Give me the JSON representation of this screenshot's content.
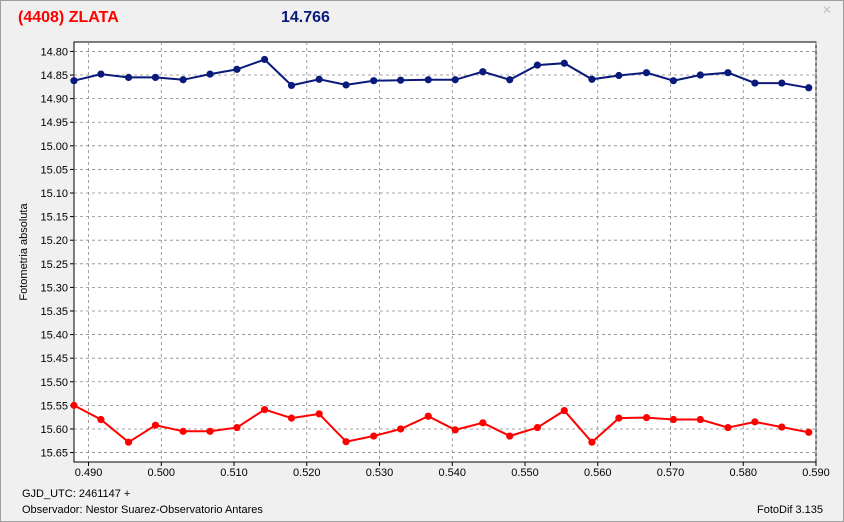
{
  "header": {
    "object_name": "(4408) ZLATA",
    "magnitude": "14.766"
  },
  "footer": {
    "gjd": "GJD_UTC: 2461147 +",
    "observer": "Observador: Nestor Suarez-Observatorio Antares",
    "version": "FotoDif 3.135"
  },
  "chart_data": {
    "type": "line",
    "title": "",
    "xlabel": "",
    "ylabel": "Fotometria absoluta",
    "xlim": [
      0.488,
      0.59
    ],
    "ylim": [
      15.67,
      14.78
    ],
    "y_inverted": true,
    "grid": true,
    "x_ticks": [
      "0.490",
      "0.500",
      "0.510",
      "0.520",
      "0.530",
      "0.540",
      "0.550",
      "0.560",
      "0.570",
      "0.580",
      "0.590"
    ],
    "y_ticks": [
      "14.80",
      "14.85",
      "14.90",
      "14.95",
      "15.00",
      "15.05",
      "15.10",
      "15.15",
      "15.20",
      "15.25",
      "15.30",
      "15.35",
      "15.40",
      "15.45",
      "15.50",
      "15.55",
      "15.60",
      "15.65"
    ],
    "x": [
      0.488,
      0.4917,
      0.4955,
      0.4992,
      0.503,
      0.5067,
      0.5104,
      0.5142,
      0.5179,
      0.5217,
      0.5254,
      0.5292,
      0.5329,
      0.5367,
      0.5404,
      0.5442,
      0.5479,
      0.5517,
      0.5554,
      0.5592,
      0.5629,
      0.5667,
      0.5704,
      0.5741,
      0.5779,
      0.5816,
      0.5853,
      0.589
    ],
    "series": [
      {
        "color": "#0a1a7a",
        "values": [
          14.862,
          14.848,
          14.855,
          14.855,
          14.86,
          14.848,
          14.838,
          14.817,
          14.872,
          14.859,
          14.871,
          14.862,
          14.861,
          14.86,
          14.86,
          14.843,
          14.86,
          14.829,
          14.825,
          14.859,
          14.851,
          14.845,
          14.862,
          14.85,
          14.845,
          14.867,
          14.867,
          14.877
        ]
      },
      {
        "color": "#ff0000",
        "values": [
          15.55,
          15.58,
          15.628,
          15.592,
          15.605,
          15.605,
          15.597,
          15.559,
          15.577,
          15.568,
          15.627,
          15.615,
          15.6,
          15.573,
          15.602,
          15.587,
          15.615,
          15.597,
          15.561,
          15.628,
          15.577,
          15.576,
          15.58,
          15.58,
          15.597,
          15.585,
          15.596,
          15.607
        ]
      }
    ]
  }
}
